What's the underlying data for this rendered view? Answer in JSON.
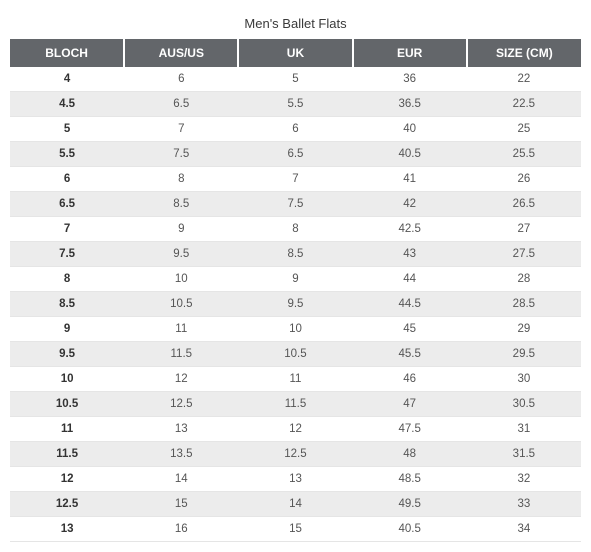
{
  "title": "Men's Ballet Flats",
  "colors": {
    "header_bg": "#63666a",
    "header_text": "#ffffff",
    "row_even_bg": "#ffffff",
    "row_odd_bg": "#ececec",
    "cell_text": "#555555",
    "first_col_text": "#333333",
    "border": "#e5e5e5",
    "title_text": "#3a3a3a"
  },
  "fontsize": {
    "title": 13,
    "header": 12,
    "cell": 11.5
  },
  "columns": [
    "BLOCH",
    "AUS/US",
    "UK",
    "EUR",
    "SIZE (CM)"
  ],
  "column_widths_pct": [
    20,
    20,
    20,
    20,
    20
  ],
  "rows": [
    [
      "4",
      "6",
      "5",
      "36",
      "22"
    ],
    [
      "4.5",
      "6.5",
      "5.5",
      "36.5",
      "22.5"
    ],
    [
      "5",
      "7",
      "6",
      "40",
      "25"
    ],
    [
      "5.5",
      "7.5",
      "6.5",
      "40.5",
      "25.5"
    ],
    [
      "6",
      "8",
      "7",
      "41",
      "26"
    ],
    [
      "6.5",
      "8.5",
      "7.5",
      "42",
      "26.5"
    ],
    [
      "7",
      "9",
      "8",
      "42.5",
      "27"
    ],
    [
      "7.5",
      "9.5",
      "8.5",
      "43",
      "27.5"
    ],
    [
      "8",
      "10",
      "9",
      "44",
      "28"
    ],
    [
      "8.5",
      "10.5",
      "9.5",
      "44.5",
      "28.5"
    ],
    [
      "9",
      "11",
      "10",
      "45",
      "29"
    ],
    [
      "9.5",
      "11.5",
      "10.5",
      "45.5",
      "29.5"
    ],
    [
      "10",
      "12",
      "11",
      "46",
      "30"
    ],
    [
      "10.5",
      "12.5",
      "11.5",
      "47",
      "30.5"
    ],
    [
      "11",
      "13",
      "12",
      "47.5",
      "31"
    ],
    [
      "11.5",
      "13.5",
      "12.5",
      "48",
      "31.5"
    ],
    [
      "12",
      "14",
      "13",
      "48.5",
      "32"
    ],
    [
      "12.5",
      "15",
      "14",
      "49.5",
      "33"
    ],
    [
      "13",
      "16",
      "15",
      "40.5",
      "34"
    ]
  ]
}
